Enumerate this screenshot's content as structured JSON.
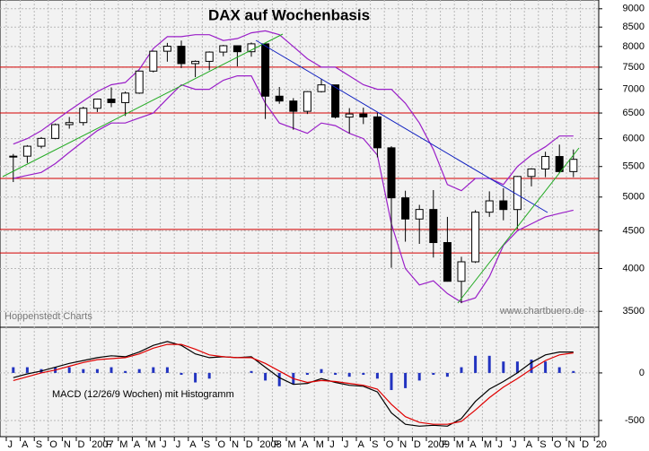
{
  "chart_data": [
    {
      "type": "candlestick",
      "title": "DAX auf Wochenbasis",
      "annotations": [
        "Hoppenstedt Charts",
        "www.chartbuero.de"
      ],
      "categories": [
        "J",
        "A",
        "S",
        "O",
        "N",
        "D",
        "2007",
        "F",
        "M",
        "A",
        "M",
        "J",
        "J",
        "A",
        "S",
        "O",
        "N",
        "D",
        "2008",
        "F",
        "M",
        "A",
        "M",
        "J",
        "J",
        "A",
        "S",
        "O",
        "N",
        "D",
        "2009",
        "F",
        "M",
        "A",
        "M",
        "J",
        "J",
        "A",
        "S",
        "O",
        "N",
        "D",
        "20"
      ],
      "open": [
        5680,
        5681,
        5860,
        6005,
        6269,
        6309,
        6597,
        6789,
        6715,
        6917,
        7409,
        7883,
        8007,
        7584,
        7638,
        7862,
        8019,
        7871,
        8067,
        6851,
        6748,
        6535,
        6949,
        7097,
        6418,
        6480,
        6422,
        5831,
        4988,
        4669,
        4810,
        4338,
        3844,
        4085,
        4769,
        4941,
        4809,
        5332,
        5458,
        5675,
        5414,
        null,
        null
      ],
      "high": [
        5720,
        5880,
        6030,
        6290,
        6420,
        6630,
        6800,
        7040,
        6950,
        7420,
        7900,
        8090,
        8150,
        7660,
        7880,
        8040,
        8030,
        8100,
        8070,
        7050,
        6810,
        6960,
        7230,
        7100,
        6600,
        6610,
        6500,
        5860,
        5100,
        4880,
        5110,
        4700,
        4150,
        4800,
        5090,
        5140,
        5340,
        5470,
        5760,
        5890,
        5800,
        null,
        null
      ],
      "low": [
        5240,
        5560,
        5820,
        5990,
        6190,
        6250,
        6520,
        6620,
        6440,
        6900,
        7380,
        7630,
        7480,
        7270,
        7430,
        7760,
        7520,
        7750,
        6380,
        6690,
        6170,
        6480,
        6930,
        6390,
        6100,
        6280,
        5660,
        4010,
        4350,
        4320,
        4140,
        3840,
        3590,
        4070,
        4700,
        4650,
        4530,
        5170,
        5320,
        5390,
        5320,
        null,
        null
      ],
      "close": [
        5681,
        5860,
        6005,
        6269,
        6309,
        6597,
        6789,
        6715,
        6917,
        7409,
        7883,
        8007,
        7584,
        7638,
        7862,
        8019,
        7871,
        8067,
        6851,
        6748,
        6535,
        6949,
        7097,
        6418,
        6480,
        6422,
        5831,
        4988,
        4669,
        4810,
        4338,
        3844,
        4085,
        4769,
        4941,
        4809,
        5332,
        5458,
        5675,
        5414,
        5625,
        null,
        null
      ],
      "series": [
        {
          "color": "#9a1fc8",
          "values": [
            5900,
            6000,
            6150,
            6350,
            6550,
            6750,
            6950,
            7100,
            7150,
            7450,
            7950,
            8250,
            8250,
            8300,
            8300,
            8150,
            8200,
            8350,
            8400,
            8300,
            8000,
            7700,
            7500,
            7500,
            7300,
            7100,
            7000,
            7000,
            6700,
            6300,
            5800,
            5200,
            5100,
            5300,
            5300,
            5200,
            5500,
            5700,
            5850,
            6050,
            6050,
            null,
            null
          ]
        },
        {
          "color": "#9a1fc8",
          "values": [
            5300,
            5350,
            5400,
            5550,
            5750,
            5950,
            6150,
            6300,
            6300,
            6400,
            6500,
            6800,
            7100,
            7000,
            7000,
            7200,
            7300,
            7300,
            6700,
            6300,
            6200,
            6100,
            6300,
            6250,
            6100,
            6000,
            5700,
            4600,
            4000,
            3800,
            3850,
            3700,
            3600,
            3650,
            3900,
            4300,
            4500,
            4600,
            4700,
            4750,
            4800,
            null,
            null
          ]
        }
      ],
      "reference_lines": [
        7500,
        6500,
        5300,
        4520,
        4200
      ],
      "reference_color": "#d40000",
      "log_scale": true,
      "grid": true,
      "ylim": [
        3330,
        9250
      ],
      "yticks": [
        3500,
        4000,
        4500,
        5000,
        5500,
        6000,
        6500,
        7000,
        7500,
        8000,
        8500,
        9000
      ]
    },
    {
      "type": "macd",
      "label": "MACD (12/26/9 Wochen) mit Histogramm",
      "series": [
        {
          "color": "#000000",
          "values": [
            -50,
            -10,
            20,
            60,
            100,
            130,
            160,
            180,
            170,
            220,
            290,
            330,
            290,
            200,
            160,
            170,
            160,
            170,
            60,
            -50,
            -120,
            -110,
            -60,
            -100,
            -130,
            -140,
            -200,
            -420,
            -540,
            -560,
            -550,
            -560,
            -480,
            -300,
            -170,
            -90,
            0,
            110,
            190,
            220,
            220,
            null,
            null
          ]
        },
        {
          "color": "#e00000",
          "values": [
            -80,
            -40,
            0,
            30,
            70,
            110,
            140,
            150,
            160,
            200,
            260,
            300,
            300,
            250,
            190,
            170,
            160,
            160,
            100,
            20,
            -60,
            -100,
            -80,
            -90,
            -110,
            -130,
            -170,
            -330,
            -460,
            -520,
            -540,
            -540,
            -510,
            -390,
            -260,
            -150,
            -60,
            40,
            130,
            190,
            210,
            null,
            null
          ]
        }
      ],
      "histogram": {
        "color": "#2233c0",
        "values": [
          60,
          60,
          40,
          60,
          60,
          40,
          40,
          60,
          20,
          40,
          60,
          60,
          -20,
          -100,
          -60,
          0,
          0,
          20,
          -80,
          -140,
          -120,
          -20,
          40,
          -20,
          -40,
          -20,
          -60,
          -180,
          -160,
          -80,
          -20,
          -40,
          60,
          180,
          180,
          120,
          120,
          140,
          120,
          60,
          20,
          null,
          null
        ]
      },
      "grid": true,
      "ylim": [
        -670,
        480
      ],
      "yticks": [
        -500,
        0
      ]
    }
  ]
}
